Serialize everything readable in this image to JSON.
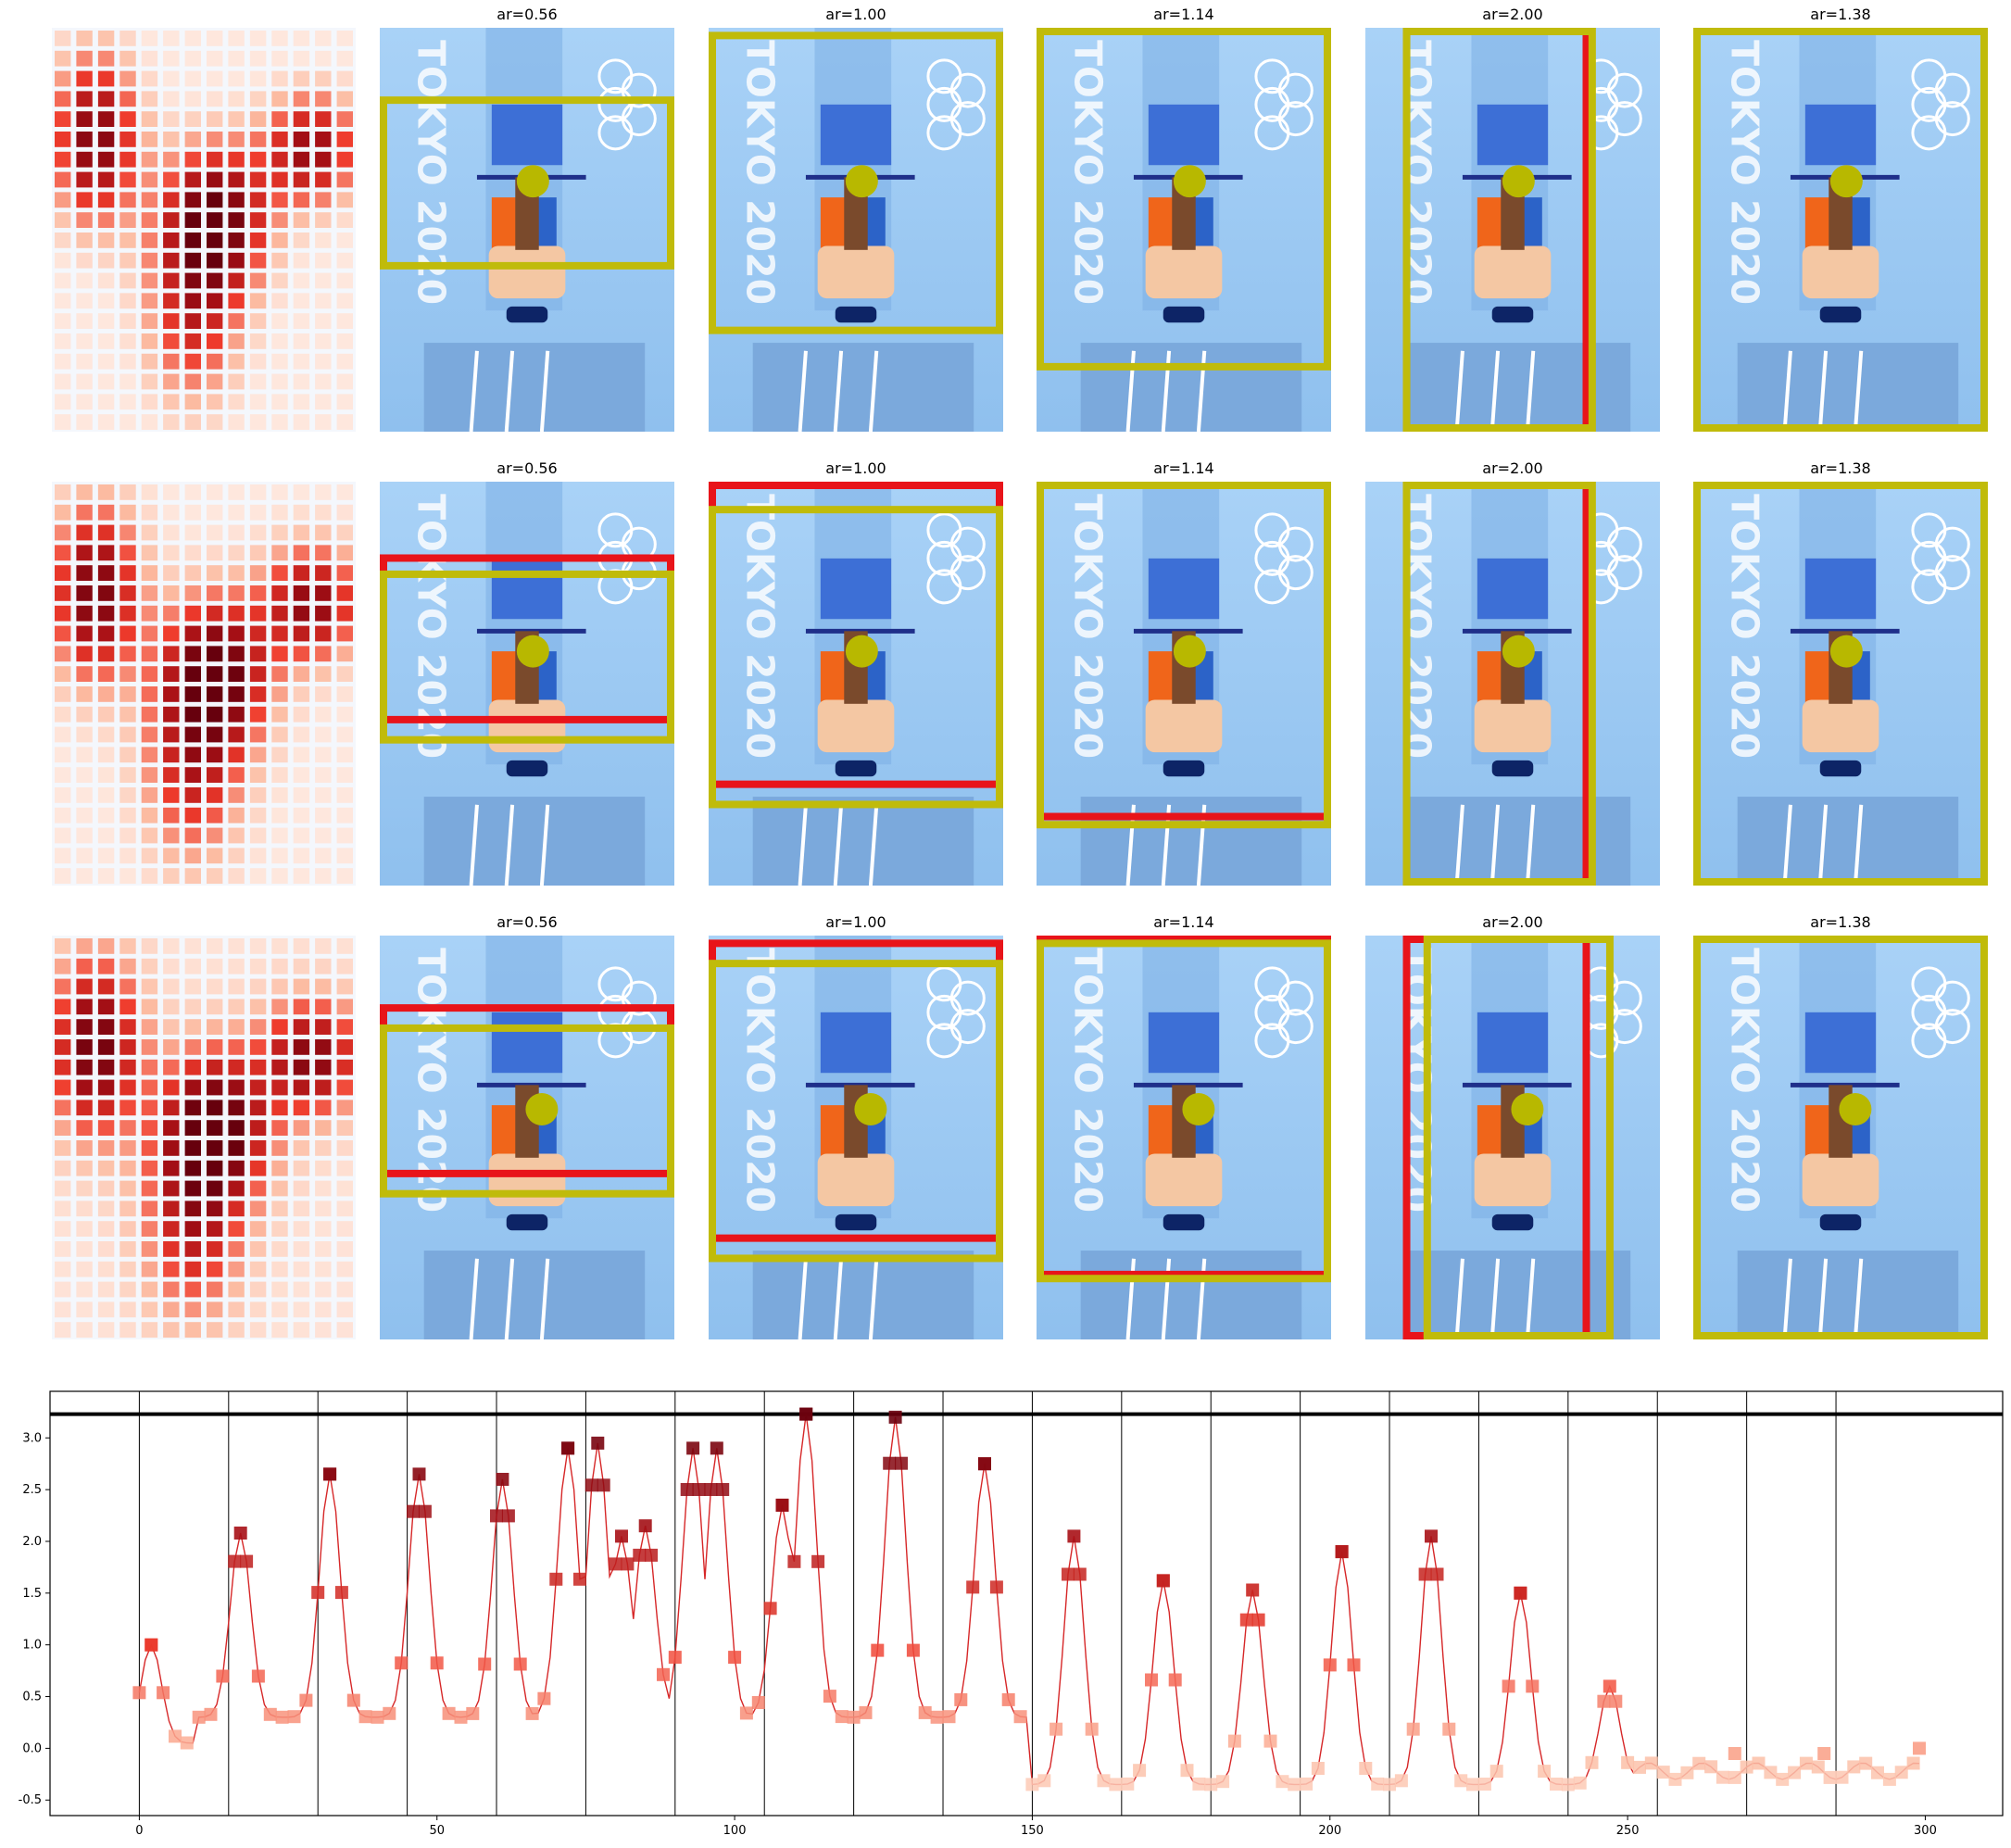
{
  "figure": {
    "rows": [
      {
        "panels": [
          {
            "title": "",
            "kind": "heatmap"
          },
          {
            "title": "ar=0.56",
            "kind": "crop"
          },
          {
            "title": "ar=1.00",
            "kind": "crop"
          },
          {
            "title": "ar=1.14",
            "kind": "crop"
          },
          {
            "title": "ar=2.00",
            "kind": "crop"
          },
          {
            "title": "ar=1.38",
            "kind": "crop"
          }
        ]
      },
      {
        "panels": [
          {
            "title": "",
            "kind": "heatmap"
          },
          {
            "title": "ar=0.56",
            "kind": "crop"
          },
          {
            "title": "ar=1.00",
            "kind": "crop"
          },
          {
            "title": "ar=1.14",
            "kind": "crop"
          },
          {
            "title": "ar=2.00",
            "kind": "crop"
          },
          {
            "title": "ar=1.38",
            "kind": "crop"
          }
        ]
      },
      {
        "panels": [
          {
            "title": "",
            "kind": "heatmap"
          },
          {
            "title": "ar=0.56",
            "kind": "crop"
          },
          {
            "title": "ar=1.00",
            "kind": "crop"
          },
          {
            "title": "ar=1.14",
            "kind": "crop"
          },
          {
            "title": "ar=2.00",
            "kind": "crop"
          },
          {
            "title": "ar=1.38",
            "kind": "crop"
          }
        ]
      }
    ],
    "watermark_text": "TOKYO 2020",
    "colors": {
      "predicted_box": "#c0bb0a",
      "reference_box": "#e8141a",
      "focus_point": "#b8b800",
      "line": "#d62728",
      "threshold": "#000000",
      "background_blue": "#9ecbf5"
    }
  },
  "chart_data": {
    "type": "line",
    "title": "",
    "xlabel": "",
    "ylabel": "",
    "xlim": [
      -15,
      313
    ],
    "ylim": [
      -0.65,
      3.45
    ],
    "xticks": [
      0,
      50,
      100,
      150,
      200,
      250,
      300
    ],
    "yticks": [
      -0.5,
      0.0,
      0.5,
      1.0,
      1.5,
      2.0,
      2.5,
      3.0
    ],
    "threshold": 3.23,
    "vertical_lines": [
      0,
      15,
      30,
      45,
      60,
      75,
      90,
      105,
      120,
      135,
      150,
      165,
      180,
      195,
      210,
      225,
      240,
      255,
      270,
      285
    ],
    "marker": "square",
    "peaks": [
      {
        "x": 2,
        "y": 1.0
      },
      {
        "x": 17,
        "y": 2.08
      },
      {
        "x": 32,
        "y": 2.65
      },
      {
        "x": 47,
        "y": 2.65
      },
      {
        "x": 61,
        "y": 2.6
      },
      {
        "x": 72,
        "y": 2.9
      },
      {
        "x": 77,
        "y": 2.95
      },
      {
        "x": 81,
        "y": 2.05
      },
      {
        "x": 85,
        "y": 2.15
      },
      {
        "x": 93,
        "y": 2.9
      },
      {
        "x": 97,
        "y": 2.9
      },
      {
        "x": 108,
        "y": 2.35
      },
      {
        "x": 112,
        "y": 3.23
      },
      {
        "x": 127,
        "y": 3.2
      },
      {
        "x": 142,
        "y": 2.75
      },
      {
        "x": 157,
        "y": 2.05
      },
      {
        "x": 172,
        "y": 1.62
      },
      {
        "x": 187,
        "y": 1.53
      },
      {
        "x": 202,
        "y": 1.9
      },
      {
        "x": 217,
        "y": 2.05
      },
      {
        "x": 232,
        "y": 1.5
      },
      {
        "x": 247,
        "y": 0.6
      },
      {
        "x": 268,
        "y": -0.05
      },
      {
        "x": 283,
        "y": -0.05
      },
      {
        "x": 299,
        "y": 0.0
      }
    ]
  }
}
